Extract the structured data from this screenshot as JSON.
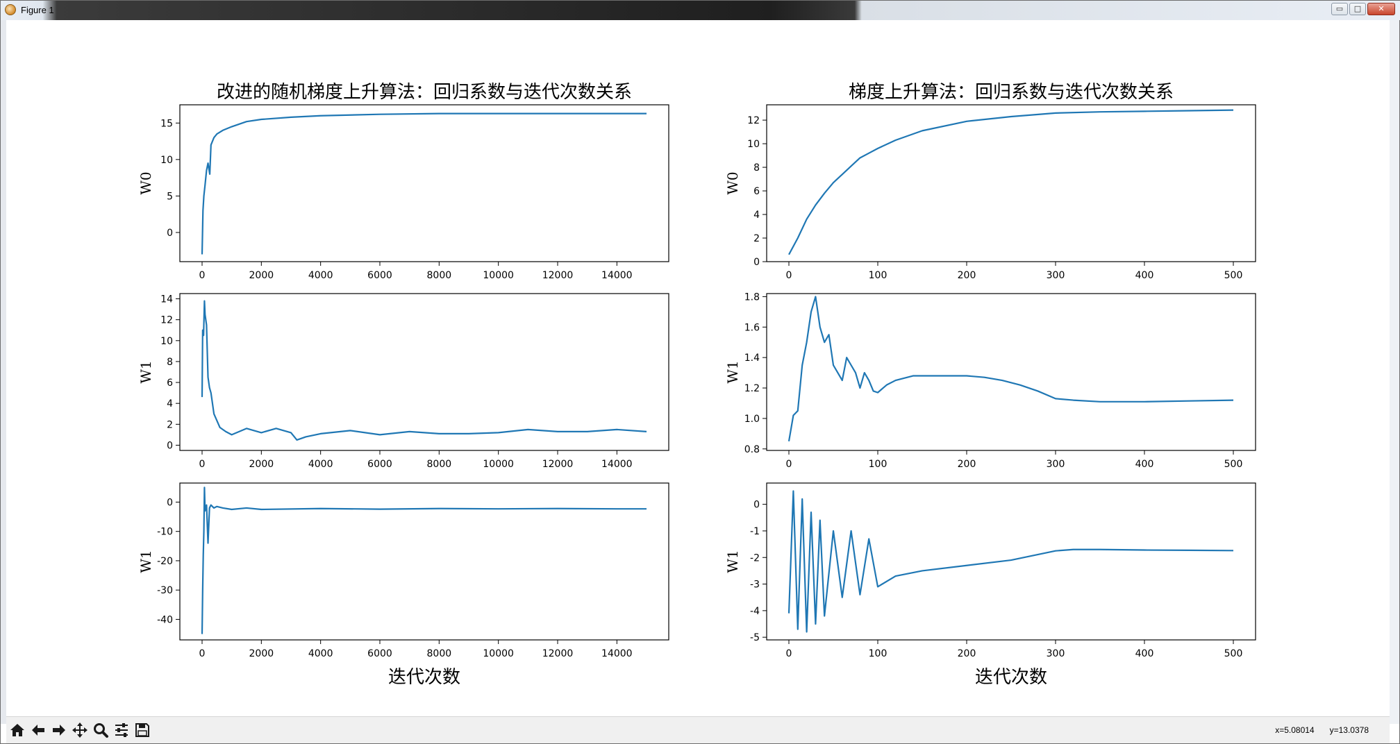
{
  "window": {
    "title": "Figure 1",
    "buttons": {
      "minimize": "▭",
      "maximize": "□",
      "close": "✕"
    }
  },
  "toolbar": {
    "buttons": [
      "home-icon",
      "back-icon",
      "forward-icon",
      "pan-icon",
      "zoom-icon",
      "configure-subplots-icon",
      "save-icon"
    ],
    "coords": {
      "x": "x=5.08014",
      "y": "y=13.0378"
    }
  },
  "colors": {
    "line": "#1f77b4",
    "axes": "#000000",
    "toolbar": "#f0f0f0"
  },
  "chart_data": [
    {
      "type": "line",
      "column": "left",
      "row": 0,
      "title": "改进的随机梯度上升算法：回归系数与迭代次数关系",
      "xlabel": "",
      "ylabel": "W0",
      "xlim": [
        -750,
        15750
      ],
      "ylim": [
        -4,
        17.5
      ],
      "xticks": [
        0,
        2000,
        4000,
        6000,
        8000,
        10000,
        12000,
        14000
      ],
      "yticks": [
        0,
        5,
        10,
        15
      ],
      "x": [
        0,
        30,
        60,
        100,
        150,
        200,
        260,
        300,
        350,
        400,
        500,
        700,
        1000,
        1500,
        2000,
        3000,
        4000,
        6000,
        8000,
        10000,
        12000,
        14000,
        15000
      ],
      "y": [
        -3,
        3,
        5,
        6.5,
        8.5,
        9.5,
        8,
        12,
        12.5,
        13,
        13.5,
        14,
        14.5,
        15.2,
        15.5,
        15.8,
        16,
        16.2,
        16.3,
        16.3,
        16.3,
        16.3,
        16.3
      ]
    },
    {
      "type": "line",
      "column": "left",
      "row": 1,
      "title": "",
      "xlabel": "",
      "ylabel": "W1",
      "xlim": [
        -750,
        15750
      ],
      "ylim": [
        -0.5,
        14.5
      ],
      "xticks": [
        0,
        2000,
        4000,
        6000,
        8000,
        10000,
        12000,
        14000
      ],
      "yticks": [
        0,
        2,
        4,
        6,
        8,
        10,
        12,
        14
      ],
      "x": [
        0,
        20,
        50,
        80,
        100,
        150,
        200,
        250,
        300,
        400,
        600,
        800,
        1000,
        1500,
        2000,
        2500,
        3000,
        3200,
        3500,
        4000,
        5000,
        6000,
        7000,
        8000,
        9000,
        10000,
        11000,
        12000,
        13000,
        14000,
        15000
      ],
      "y": [
        4.6,
        11,
        10.5,
        13.8,
        12.5,
        11.5,
        6.5,
        5.5,
        5,
        3,
        1.7,
        1.3,
        1,
        1.6,
        1.2,
        1.6,
        1.2,
        0.5,
        0.8,
        1.1,
        1.4,
        1,
        1.3,
        1.1,
        1.1,
        1.2,
        1.5,
        1.3,
        1.3,
        1.5,
        1.3
      ]
    },
    {
      "type": "line",
      "column": "left",
      "row": 2,
      "title": "",
      "xlabel": "迭代次数",
      "ylabel": "W1",
      "xlim": [
        -750,
        15750
      ],
      "ylim": [
        -47,
        6.5
      ],
      "xticks": [
        0,
        2000,
        4000,
        6000,
        8000,
        10000,
        12000,
        14000
      ],
      "yticks": [
        0,
        -10,
        -20,
        -30,
        -40
      ],
      "x": [
        0,
        20,
        40,
        60,
        80,
        100,
        150,
        200,
        250,
        300,
        400,
        500,
        700,
        1000,
        1500,
        2000,
        4000,
        6000,
        8000,
        10000,
        12000,
        14000,
        15000
      ],
      "y": [
        -45,
        -30,
        -18,
        -10,
        5,
        -3,
        -1,
        -14,
        -2,
        -1,
        -2,
        -1.5,
        -2,
        -2.5,
        -2,
        -2.5,
        -2.2,
        -2.4,
        -2.2,
        -2.3,
        -2.2,
        -2.3,
        -2.3
      ]
    },
    {
      "type": "line",
      "column": "right",
      "row": 0,
      "title": "梯度上升算法：回归系数与迭代次数关系",
      "xlabel": "",
      "ylabel": "W0",
      "xlim": [
        -25,
        525
      ],
      "ylim": [
        0,
        13.3
      ],
      "xticks": [
        0,
        100,
        200,
        300,
        400,
        500
      ],
      "yticks": [
        0,
        2,
        4,
        6,
        8,
        10,
        12
      ],
      "x": [
        0,
        10,
        20,
        30,
        40,
        50,
        60,
        70,
        80,
        90,
        100,
        120,
        150,
        200,
        250,
        300,
        350,
        400,
        450,
        500
      ],
      "y": [
        0.6,
        2.0,
        3.6,
        4.8,
        5.8,
        6.7,
        7.4,
        8.1,
        8.8,
        9.2,
        9.6,
        10.3,
        11.1,
        11.9,
        12.3,
        12.6,
        12.7,
        12.75,
        12.8,
        12.85
      ]
    },
    {
      "type": "line",
      "column": "right",
      "row": 1,
      "title": "",
      "xlabel": "",
      "ylabel": "W1",
      "xlim": [
        -25,
        525
      ],
      "ylim": [
        0.79,
        1.82
      ],
      "xticks": [
        0,
        100,
        200,
        300,
        400,
        500
      ],
      "yticks": [
        0.8,
        1.0,
        1.2,
        1.4,
        1.6,
        1.8
      ],
      "x": [
        0,
        5,
        10,
        15,
        20,
        25,
        30,
        35,
        40,
        45,
        50,
        55,
        60,
        65,
        70,
        75,
        80,
        85,
        90,
        95,
        100,
        110,
        120,
        140,
        160,
        180,
        200,
        220,
        240,
        260,
        280,
        300,
        320,
        350,
        400,
        450,
        500
      ],
      "y": [
        0.85,
        1.02,
        1.05,
        1.35,
        1.5,
        1.7,
        1.8,
        1.6,
        1.5,
        1.55,
        1.35,
        1.3,
        1.25,
        1.4,
        1.35,
        1.3,
        1.2,
        1.3,
        1.25,
        1.18,
        1.17,
        1.22,
        1.25,
        1.28,
        1.28,
        1.28,
        1.28,
        1.27,
        1.25,
        1.22,
        1.18,
        1.13,
        1.12,
        1.11,
        1.11,
        1.115,
        1.12
      ]
    },
    {
      "type": "line",
      "column": "right",
      "row": 2,
      "title": "",
      "xlabel": "迭代次数",
      "ylabel": "W1",
      "xlim": [
        -25,
        525
      ],
      "ylim": [
        -5.1,
        0.8
      ],
      "xticks": [
        0,
        100,
        200,
        300,
        400,
        500
      ],
      "yticks": [
        0,
        -1,
        -2,
        -3,
        -4,
        -5
      ],
      "x": [
        0,
        5,
        10,
        15,
        20,
        25,
        30,
        35,
        40,
        50,
        60,
        70,
        80,
        90,
        100,
        120,
        150,
        200,
        250,
        300,
        320,
        350,
        400,
        450,
        500
      ],
      "y": [
        -4.1,
        0.5,
        -4.7,
        0.2,
        -4.8,
        -0.3,
        -4.5,
        -0.6,
        -4.2,
        -1,
        -3.5,
        -1,
        -3.4,
        -1.3,
        -3.1,
        -2.7,
        -2.5,
        -2.3,
        -2.1,
        -1.75,
        -1.7,
        -1.7,
        -1.72,
        -1.73,
        -1.74
      ]
    }
  ]
}
